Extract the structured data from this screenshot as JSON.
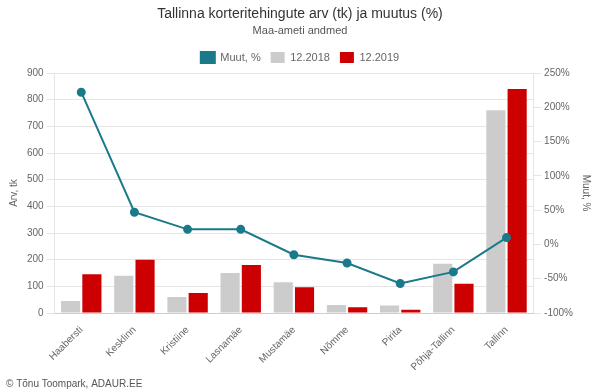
{
  "chart_data": {
    "type": "bar",
    "title": "Tallinna korteritehingute arv (tk) ja muutus (%)",
    "subtitle": "Maa-ameti andmed",
    "ylabel": "Arv, tk",
    "y2label": "Muut, %",
    "annotations": [
      "© Tõnu Toompark, ADAUR.EE"
    ],
    "categories": [
      "Haabersti",
      "Kesklinn",
      "Kristiine",
      "Lasnamäe",
      "Mustamäe",
      "Nõmme",
      "Pirita",
      "Põhja-Tallinn",
      "Tallinn"
    ],
    "series": [
      {
        "name": "12.2018",
        "color": "#cccccc",
        "values": [
          45,
          140,
          60,
          150,
          115,
          30,
          28,
          185,
          760
        ]
      },
      {
        "name": "12.2019",
        "color": "#cc0000",
        "values": [
          145,
          200,
          75,
          180,
          97,
          22,
          12,
          110,
          840
        ]
      },
      {
        "name": "Muut, %",
        "color": "#1a7a8a",
        "type": "line",
        "marker": "circle",
        "axis": "y2",
        "values": [
          222,
          47,
          22,
          22,
          -15,
          -27,
          -57,
          -40,
          10
        ]
      }
    ],
    "ylim": [
      0,
      900
    ],
    "yticks": [
      0,
      100,
      200,
      300,
      400,
      500,
      600,
      700,
      800,
      900
    ],
    "y2lim": [
      -100,
      250
    ],
    "y2ticks": [
      {
        "value": -100,
        "label": "-100%"
      },
      {
        "value": -50,
        "label": "-50%"
      },
      {
        "value": 0,
        "label": "0%"
      },
      {
        "value": 50,
        "label": "50%"
      },
      {
        "value": 100,
        "label": "100%"
      },
      {
        "value": 150,
        "label": "150%"
      },
      {
        "value": 200,
        "label": "200%"
      },
      {
        "value": 250,
        "label": "250%"
      }
    ],
    "grid": true,
    "legend": "top"
  }
}
